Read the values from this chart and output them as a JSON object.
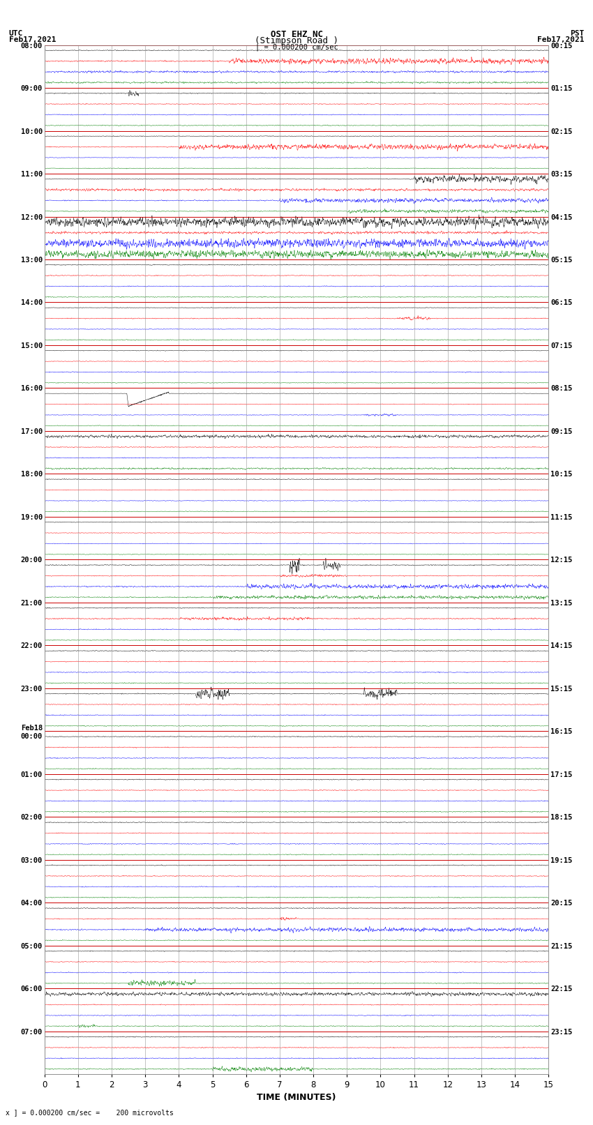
{
  "title_line1": "OST EHZ NC",
  "title_line2": "(Stimpson Road )",
  "scale_text": "| = 0.000200 cm/sec",
  "left_label1": "UTC",
  "left_label2": "Feb17,2021",
  "right_label1": "PST",
  "right_label2": "Feb17,2021",
  "bottom_note": "x ] = 0.000200 cm/sec =    200 microvolts",
  "xlabel": "TIME (MINUTES)",
  "utc_times": [
    "08:00",
    "09:00",
    "10:00",
    "11:00",
    "12:00",
    "13:00",
    "14:00",
    "15:00",
    "16:00",
    "17:00",
    "18:00",
    "19:00",
    "20:00",
    "21:00",
    "22:00",
    "23:00",
    "Feb18\n00:00",
    "01:00",
    "02:00",
    "03:00",
    "04:00",
    "05:00",
    "06:00",
    "07:00"
  ],
  "pst_times": [
    "00:15",
    "01:15",
    "02:15",
    "03:15",
    "04:15",
    "05:15",
    "06:15",
    "07:15",
    "08:15",
    "09:15",
    "10:15",
    "11:15",
    "12:15",
    "13:15",
    "14:15",
    "15:15",
    "16:15",
    "17:15",
    "18:15",
    "19:15",
    "20:15",
    "21:15",
    "22:15",
    "23:15"
  ],
  "colors": [
    "black",
    "red",
    "blue",
    "green"
  ],
  "bg_color": "white",
  "h_line_color": "#cc0000",
  "v_line_color": "#888888",
  "figsize": [
    8.5,
    16.13
  ],
  "dpi": 100,
  "num_blocks": 24,
  "traces_per_block": 4
}
